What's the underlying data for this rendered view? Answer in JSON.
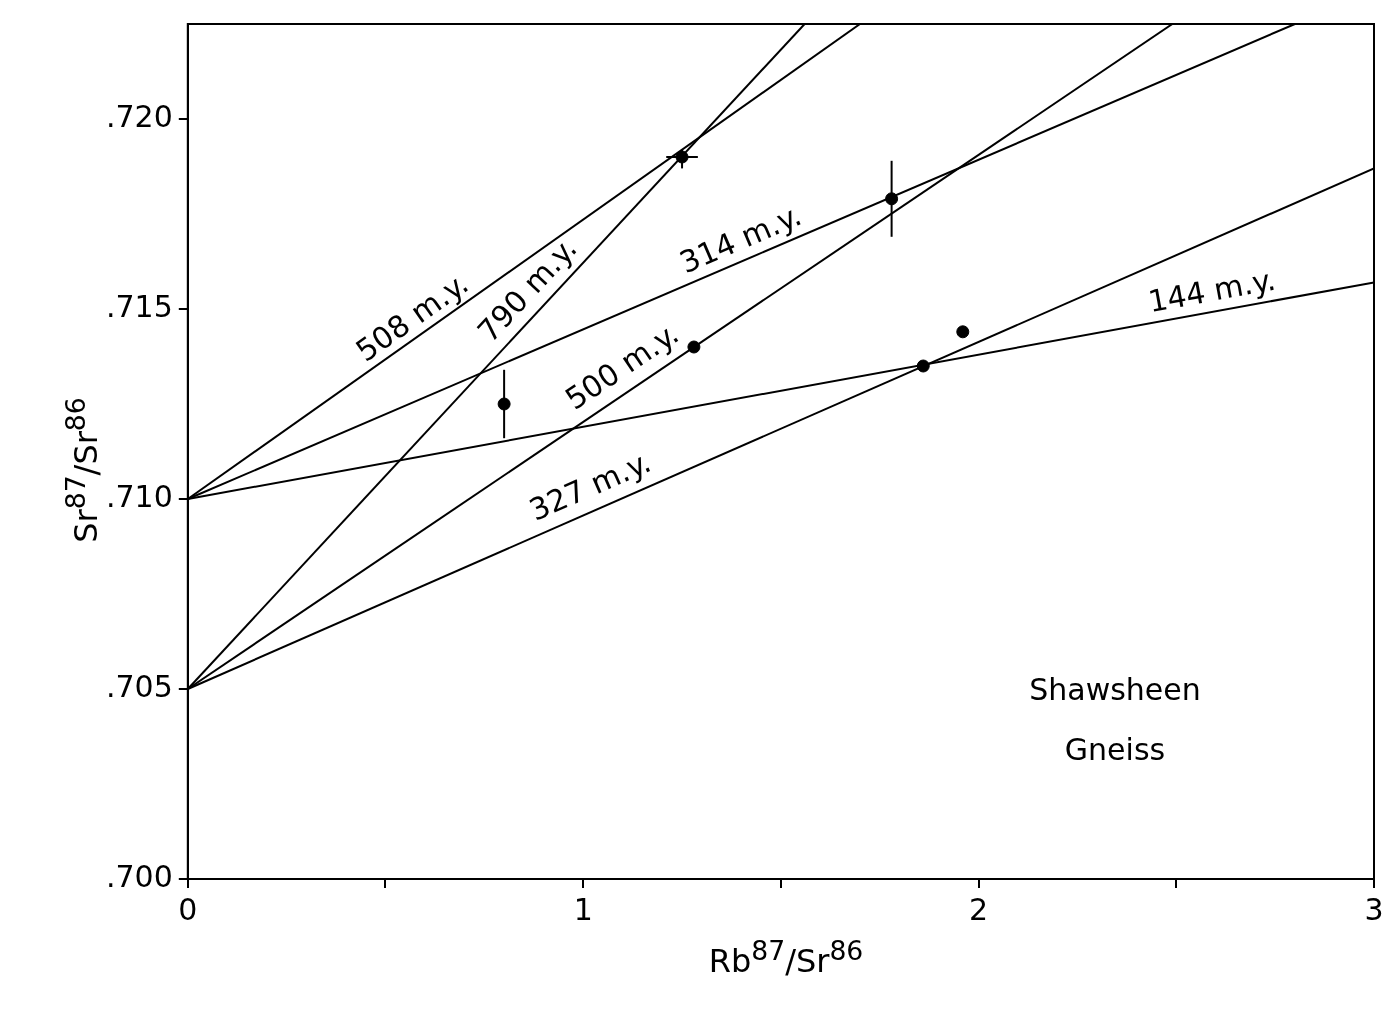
{
  "chart_data": {
    "type": "scatter",
    "xlabel": "Rb$^{87}$/Sr$^{86}$",
    "ylabel": "Sr$^{87}$/Sr$^{86}$",
    "xlim": [
      0,
      3
    ],
    "xticks": [
      0,
      {
        "value": 0.5,
        "label": null
      },
      1,
      {
        "value": 1.5,
        "label": null
      },
      2,
      {
        "value": 2.5,
        "label": null
      },
      3
    ],
    "ylim": [
      0.7,
      0.7225
    ],
    "yticks": [
      {
        "value": 0.7,
        "label": ".700"
      },
      {
        "value": 0.705,
        "label": ".705"
      },
      {
        "value": 0.71,
        "label": ".710"
      },
      {
        "value": 0.715,
        "label": ".715"
      },
      {
        "value": 0.72,
        "label": ".720"
      }
    ],
    "legend": false,
    "marker": "circle",
    "series": [
      {
        "type": "line",
        "marker": "none",
        "color": "#000000",
        "x": [
          0,
          1.7
        ],
        "values": [
          0.71,
          0.7225
        ]
      },
      {
        "type": "line",
        "marker": "none",
        "color": "#000000",
        "x": [
          0,
          1.56
        ],
        "values": [
          0.705,
          0.7225
        ]
      },
      {
        "type": "line",
        "marker": "none",
        "color": "#000000",
        "x": [
          0,
          2.8
        ],
        "values": [
          0.71,
          0.7225
        ]
      },
      {
        "type": "line",
        "marker": "none",
        "color": "#000000",
        "x": [
          0,
          2.49
        ],
        "values": [
          0.705,
          0.7225
        ]
      },
      {
        "type": "line",
        "marker": "none",
        "color": "#000000",
        "x": [
          0,
          3
        ],
        "values": [
          0.705,
          0.7187
        ]
      },
      {
        "type": "line",
        "marker": "none",
        "color": "#000000",
        "x": [
          0,
          3
        ],
        "values": [
          0.71,
          0.7157
        ]
      },
      {
        "color": "#000000",
        "x": [
          0.8,
          1.25,
          1.28,
          1.78,
          1.86,
          1.96
        ],
        "values": [
          0.7125,
          0.719,
          0.714,
          0.7179,
          0.7135,
          0.7144
        ],
        "errors": [
          [
            0.7116,
            0.7134
          ],
          [
            0.7187,
            0.7192
          ],
          null,
          [
            0.7169,
            0.7189
          ],
          null,
          null
        ],
        "xerrors": [
          null,
          [
            1.21,
            1.29
          ],
          null,
          null,
          null,
          null
        ]
      }
    ],
    "annotations": [
      {
        "text": "508 m.y.",
        "x": 0.6,
        "y": 0.7143
      },
      {
        "text": "790 m.y.",
        "x": 0.9,
        "y": 0.7151
      },
      {
        "text": "314 m.y.",
        "x": 1.42,
        "y": 0.7163
      },
      {
        "text": "500 m.y.",
        "x": 1.13,
        "y": 0.713
      },
      {
        "text": "327 m.y.",
        "x": 1.04,
        "y": 0.7098
      },
      {
        "text": "144 m.y.",
        "x": 2.6,
        "y": 0.7149
      },
      "Shawsheen Gneiss"
    ]
  }
}
